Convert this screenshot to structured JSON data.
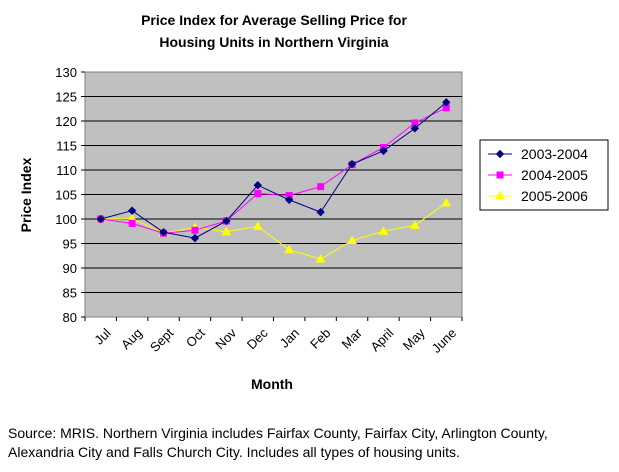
{
  "chart_data": {
    "type": "line",
    "title_lines": [
      "Price Index for Average Selling Price for",
      "Housing Units in Northern Virginia"
    ],
    "xlabel": "Month",
    "ylabel": "Price Index",
    "categories": [
      "Jul",
      "Aug",
      "Sept",
      "Oct",
      "Nov",
      "Dec",
      "Jan",
      "Feb",
      "Mar",
      "April",
      "May",
      "June"
    ],
    "ylim": [
      80,
      130
    ],
    "yticks": [
      80,
      85,
      90,
      95,
      100,
      105,
      110,
      115,
      120,
      125,
      130
    ],
    "grid": "horizontal",
    "plot_background": "#c0c0c0",
    "legend_position": "right",
    "series": [
      {
        "name": "2003-2004",
        "color": "#000080",
        "marker": "diamond",
        "values": [
          100,
          101.7,
          97.3,
          96.1,
          99.6,
          106.9,
          103.9,
          101.4,
          111.2,
          113.9,
          118.5,
          123.8
        ]
      },
      {
        "name": "2004-2005",
        "color": "#ff00ff",
        "marker": "square",
        "values": [
          100,
          99.1,
          97.1,
          97.7,
          99.6,
          105.2,
          104.8,
          106.6,
          111.1,
          114.6,
          119.6,
          122.7
        ]
      },
      {
        "name": "2005-2006",
        "color": "#ffff00",
        "marker": "triangle",
        "values": [
          100,
          100.1,
          97.1,
          98.3,
          97.4,
          98.5,
          93.7,
          91.8,
          95.6,
          97.5,
          98.7,
          103.3
        ]
      }
    ]
  },
  "footnote": "Source: MRIS.  Northern Virginia includes Fairfax County, Fairfax City, Arlington County, Alexandria City and Falls Church City. Includes all types of housing units."
}
